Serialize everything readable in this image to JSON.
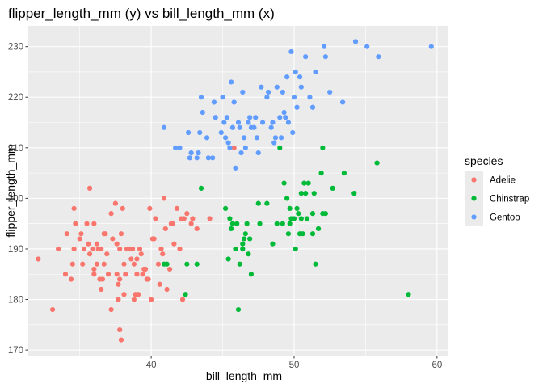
{
  "chart_data": {
    "type": "scatter",
    "title": "flipper_length_mm (y) vs bill_length_mm (x)",
    "xlabel": "bill_length_mm",
    "ylabel": "flipper_length_mm",
    "xlim": [
      31.4,
      60.8
    ],
    "ylim": [
      168.9,
      234.1
    ],
    "x_ticks": [
      40,
      50,
      60
    ],
    "y_ticks": [
      170,
      180,
      190,
      200,
      210,
      220,
      230
    ],
    "x_tick_labels": [
      "40",
      "50",
      "60"
    ],
    "y_tick_labels": [
      "170",
      "180",
      "190",
      "200",
      "210",
      "220",
      "230"
    ],
    "grid": true,
    "legend": {
      "title": "species",
      "position": "right"
    },
    "series": [
      {
        "name": "Adelie",
        "color": "#F8766D",
        "points": [
          [
            32.1,
            188
          ],
          [
            33.1,
            178
          ],
          [
            33.5,
            190
          ],
          [
            34.0,
            185
          ],
          [
            34.1,
            193
          ],
          [
            34.4,
            184
          ],
          [
            34.5,
            187
          ],
          [
            34.6,
            190
          ],
          [
            34.6,
            198
          ],
          [
            34.7,
            195
          ],
          [
            35.0,
            192
          ],
          [
            35.1,
            193
          ],
          [
            35.2,
            187
          ],
          [
            35.3,
            190
          ],
          [
            35.5,
            195
          ],
          [
            35.6,
            191
          ],
          [
            35.7,
            189
          ],
          [
            35.7,
            202
          ],
          [
            35.9,
            190
          ],
          [
            36.0,
            185
          ],
          [
            36.0,
            186
          ],
          [
            36.0,
            195
          ],
          [
            36.2,
            187
          ],
          [
            36.2,
            191
          ],
          [
            36.3,
            190
          ],
          [
            36.4,
            184
          ],
          [
            36.5,
            182
          ],
          [
            36.5,
            190
          ],
          [
            36.6,
            184
          ],
          [
            36.7,
            187
          ],
          [
            36.7,
            193
          ],
          [
            36.8,
            193
          ],
          [
            36.9,
            189
          ],
          [
            37.0,
            185
          ],
          [
            37.2,
            178
          ],
          [
            37.2,
            197
          ],
          [
            37.3,
            192
          ],
          [
            37.5,
            199
          ],
          [
            37.6,
            185
          ],
          [
            37.6,
            191
          ],
          [
            37.7,
            180
          ],
          [
            37.7,
            183
          ],
          [
            37.8,
            174
          ],
          [
            37.8,
            184
          ],
          [
            37.8,
            190
          ],
          [
            37.9,
            172
          ],
          [
            37.9,
            193
          ],
          [
            38.1,
            181
          ],
          [
            38.1,
            187
          ],
          [
            38.2,
            185
          ],
          [
            38.3,
            190
          ],
          [
            38.5,
            190
          ],
          [
            38.6,
            188
          ],
          [
            38.7,
            190
          ],
          [
            38.8,
            180
          ],
          [
            38.8,
            187
          ],
          [
            38.9,
            181
          ],
          [
            39.0,
            185
          ],
          [
            39.0,
            188
          ],
          [
            39.1,
            181
          ],
          [
            39.2,
            190
          ],
          [
            39.3,
            189
          ],
          [
            39.5,
            186
          ],
          [
            39.6,
            186
          ],
          [
            39.7,
            184
          ],
          [
            39.8,
            184
          ],
          [
            40.1,
            192
          ],
          [
            40.2,
            192
          ],
          [
            40.3,
            196
          ],
          [
            40.5,
            187
          ],
          [
            40.6,
            183
          ],
          [
            40.7,
            190
          ],
          [
            40.8,
            189
          ],
          [
            41.0,
            194
          ],
          [
            41.1,
            182
          ],
          [
            41.3,
            186
          ],
          [
            41.4,
            195
          ],
          [
            41.5,
            195
          ],
          [
            41.6,
            191
          ],
          [
            41.8,
            198
          ],
          [
            42.0,
            190
          ],
          [
            42.1,
            196
          ],
          [
            42.2,
            180
          ],
          [
            42.3,
            196
          ],
          [
            42.5,
            197
          ],
          [
            42.8,
            195
          ],
          [
            42.9,
            196
          ],
          [
            43.2,
            194
          ],
          [
            44.1,
            196
          ],
          [
            45.8,
            210
          ],
          [
            40.9,
            200
          ],
          [
            39.9,
            198
          ],
          [
            38.0,
            198
          ],
          [
            39.4,
            185
          ],
          [
            40.0,
            180
          ]
        ]
      },
      {
        "name": "Chinstrap",
        "color": "#00BA38",
        "points": [
          [
            40.9,
            187
          ],
          [
            41.1,
            187
          ],
          [
            42.4,
            181
          ],
          [
            42.5,
            187
          ],
          [
            43.2,
            187
          ],
          [
            43.5,
            202
          ],
          [
            45.2,
            198
          ],
          [
            45.4,
            188
          ],
          [
            45.5,
            196
          ],
          [
            45.6,
            194
          ],
          [
            45.7,
            195
          ],
          [
            45.9,
            190
          ],
          [
            46.0,
            195
          ],
          [
            46.1,
            178
          ],
          [
            46.2,
            187
          ],
          [
            46.4,
            190
          ],
          [
            46.5,
            192
          ],
          [
            46.6,
            193
          ],
          [
            46.7,
            195
          ],
          [
            46.8,
            189
          ],
          [
            46.9,
            192
          ],
          [
            47.0,
            185
          ],
          [
            47.5,
            199
          ],
          [
            47.6,
            195
          ],
          [
            48.1,
            199
          ],
          [
            48.5,
            191
          ],
          [
            48.8,
            195
          ],
          [
            49.0,
            210
          ],
          [
            49.2,
            195
          ],
          [
            49.3,
            203
          ],
          [
            49.5,
            200
          ],
          [
            49.6,
            193
          ],
          [
            49.7,
            198
          ],
          [
            49.8,
            196
          ],
          [
            50.0,
            196
          ],
          [
            50.1,
            190
          ],
          [
            50.2,
            198
          ],
          [
            50.3,
            197
          ],
          [
            50.4,
            193
          ],
          [
            50.5,
            201
          ],
          [
            50.6,
            193
          ],
          [
            50.7,
            203
          ],
          [
            50.8,
            201
          ],
          [
            50.9,
            196
          ],
          [
            51.0,
            203
          ],
          [
            51.3,
            193
          ],
          [
            51.4,
            201
          ],
          [
            51.5,
            187
          ],
          [
            51.7,
            194
          ],
          [
            51.9,
            205
          ],
          [
            52.0,
            210
          ],
          [
            52.0,
            197
          ],
          [
            52.2,
            197
          ],
          [
            52.7,
            202
          ],
          [
            53.5,
            205
          ],
          [
            54.2,
            201
          ],
          [
            55.8,
            207
          ],
          [
            58.0,
            181
          ],
          [
            51.3,
            197
          ],
          [
            50.5,
            196
          ],
          [
            46.4,
            191
          ],
          [
            49.7,
            195
          ]
        ]
      },
      {
        "name": "Gentoo",
        "color": "#619CFF",
        "points": [
          [
            40.9,
            214
          ],
          [
            41.7,
            210
          ],
          [
            42.0,
            210
          ],
          [
            42.6,
            213
          ],
          [
            42.7,
            208
          ],
          [
            42.8,
            209
          ],
          [
            43.2,
            208
          ],
          [
            43.3,
            209
          ],
          [
            43.4,
            213
          ],
          [
            43.5,
            220
          ],
          [
            43.6,
            217
          ],
          [
            44.0,
            208
          ],
          [
            44.4,
            219
          ],
          [
            44.5,
            216
          ],
          [
            44.9,
            213
          ],
          [
            45.0,
            220
          ],
          [
            45.1,
            215
          ],
          [
            45.2,
            212
          ],
          [
            45.3,
            216
          ],
          [
            45.4,
            211
          ],
          [
            45.5,
            210
          ],
          [
            45.6,
            223
          ],
          [
            45.7,
            214
          ],
          [
            45.8,
            219
          ],
          [
            46.1,
            215
          ],
          [
            46.2,
            214
          ],
          [
            46.3,
            209
          ],
          [
            46.4,
            221
          ],
          [
            46.5,
            212
          ],
          [
            46.6,
            210
          ],
          [
            46.8,
            215
          ],
          [
            46.9,
            216
          ],
          [
            47.2,
            214
          ],
          [
            47.3,
            216
          ],
          [
            47.4,
            212
          ],
          [
            47.5,
            209
          ],
          [
            47.7,
            222
          ],
          [
            47.8,
            215
          ],
          [
            48.1,
            220
          ],
          [
            48.2,
            221
          ],
          [
            48.4,
            214
          ],
          [
            48.5,
            215
          ],
          [
            48.6,
            211
          ],
          [
            48.7,
            212
          ],
          [
            49.0,
            216
          ],
          [
            49.1,
            212
          ],
          [
            49.2,
            221
          ],
          [
            49.4,
            216
          ],
          [
            49.5,
            224
          ],
          [
            49.6,
            215
          ],
          [
            49.8,
            229
          ],
          [
            49.9,
            213
          ],
          [
            50.0,
            220
          ],
          [
            50.1,
            225
          ],
          [
            50.2,
            218
          ],
          [
            50.4,
            224
          ],
          [
            50.5,
            222
          ],
          [
            50.8,
            228
          ],
          [
            51.1,
            220
          ],
          [
            51.3,
            218
          ],
          [
            51.5,
            225
          ],
          [
            52.1,
            230
          ],
          [
            52.2,
            228
          ],
          [
            52.5,
            221
          ],
          [
            53.4,
            219
          ],
          [
            54.3,
            231
          ],
          [
            55.1,
            230
          ],
          [
            55.9,
            228
          ],
          [
            59.6,
            230
          ],
          [
            48.8,
            222
          ],
          [
            49.3,
            217
          ],
          [
            47.0,
            214
          ],
          [
            45.9,
            206
          ],
          [
            44.3,
            208
          ],
          [
            43.9,
            212
          ]
        ]
      }
    ]
  }
}
